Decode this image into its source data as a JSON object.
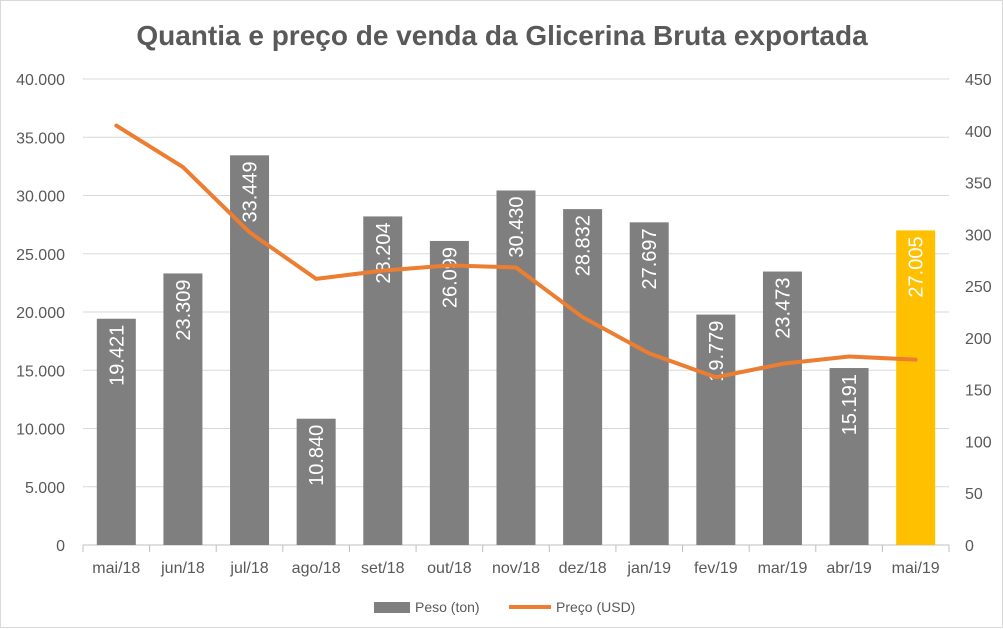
{
  "chart_data": {
    "type": "bar",
    "title": "Quantia e preço de venda da Glicerina Bruta exportada",
    "categories": [
      "mai/18",
      "jun/18",
      "jul/18",
      "ago/18",
      "set/18",
      "out/18",
      "nov/18",
      "dez/18",
      "jan/19",
      "fev/19",
      "mar/19",
      "abr/19",
      "mai/19"
    ],
    "series": [
      {
        "name": "Peso (ton)",
        "kind": "bar",
        "axis": "left",
        "color": "#7f7f7f",
        "highlight_color": "#ffc000",
        "highlight_index": 12,
        "values": [
          19421,
          23309,
          33449,
          10840,
          28204,
          26099,
          30430,
          28832,
          27697,
          19779,
          23473,
          15191,
          27005
        ],
        "data_labels": [
          "19.421",
          "23.309",
          "33.449",
          "10.840",
          "28.204",
          "26.099",
          "30.430",
          "28.832",
          "27.697",
          "19.779",
          "23.473",
          "15.191",
          "27.005"
        ]
      },
      {
        "name": "Preço (USD)",
        "kind": "line",
        "axis": "right",
        "color": "#ed7d31",
        "values": [
          405,
          365,
          302,
          257,
          265,
          270,
          268,
          220,
          185,
          162,
          175,
          182,
          179
        ]
      }
    ],
    "y_left": {
      "min": 0,
      "max": 40000,
      "ticks": [
        0,
        5000,
        10000,
        15000,
        20000,
        25000,
        30000,
        35000,
        40000
      ],
      "tick_labels": [
        "0",
        "5.000",
        "10.000",
        "15.000",
        "20.000",
        "25.000",
        "30.000",
        "35.000",
        "40.000"
      ]
    },
    "y_right": {
      "min": 0,
      "max": 450,
      "ticks": [
        0,
        50,
        100,
        150,
        200,
        250,
        300,
        350,
        400,
        450
      ],
      "tick_labels": [
        "0",
        "50",
        "100",
        "150",
        "200",
        "250",
        "300",
        "350",
        "400",
        "450"
      ]
    },
    "grid": true,
    "legend_position": "bottom"
  }
}
